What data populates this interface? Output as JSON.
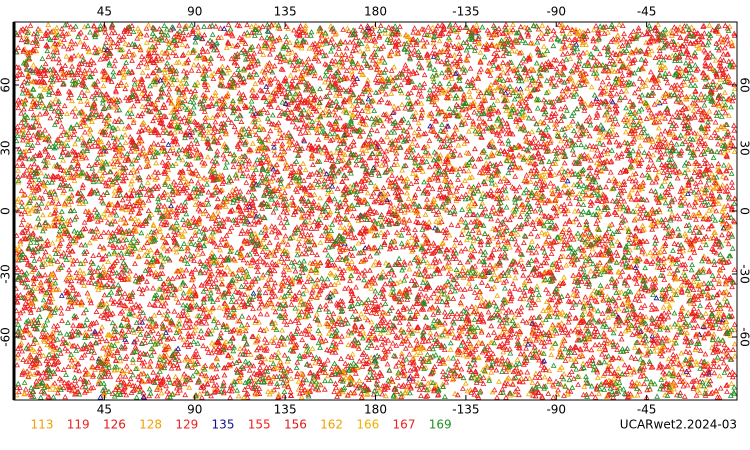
{
  "map": {
    "xlim": [
      0,
      360
    ],
    "ylim": [
      -90,
      90
    ],
    "xticks": [
      45,
      90,
      135,
      180,
      {
        "value": 225,
        "label": "-135"
      },
      {
        "value": 270,
        "label": "-90"
      },
      {
        "value": 315,
        "label": "-45"
      }
    ],
    "yticks": [
      -60,
      -30,
      0,
      30,
      60
    ]
  },
  "legend": [
    {
      "label": "113",
      "color": "#f0a000"
    },
    {
      "label": "119",
      "color": "#f02020"
    },
    {
      "label": "126",
      "color": "#e01818"
    },
    {
      "label": "128",
      "color": "#f0a000"
    },
    {
      "label": "129",
      "color": "#f02020"
    },
    {
      "label": "135",
      "color": "#101090"
    },
    {
      "label": "155",
      "color": "#f02020"
    },
    {
      "label": "156",
      "color": "#e01818"
    },
    {
      "label": "162",
      "color": "#f0a000"
    },
    {
      "label": "166",
      "color": "#f0b000"
    },
    {
      "label": "167",
      "color": "#f02020"
    },
    {
      "label": "169",
      "color": "#209020"
    }
  ],
  "caption": "UCARwet2.2024-03"
}
